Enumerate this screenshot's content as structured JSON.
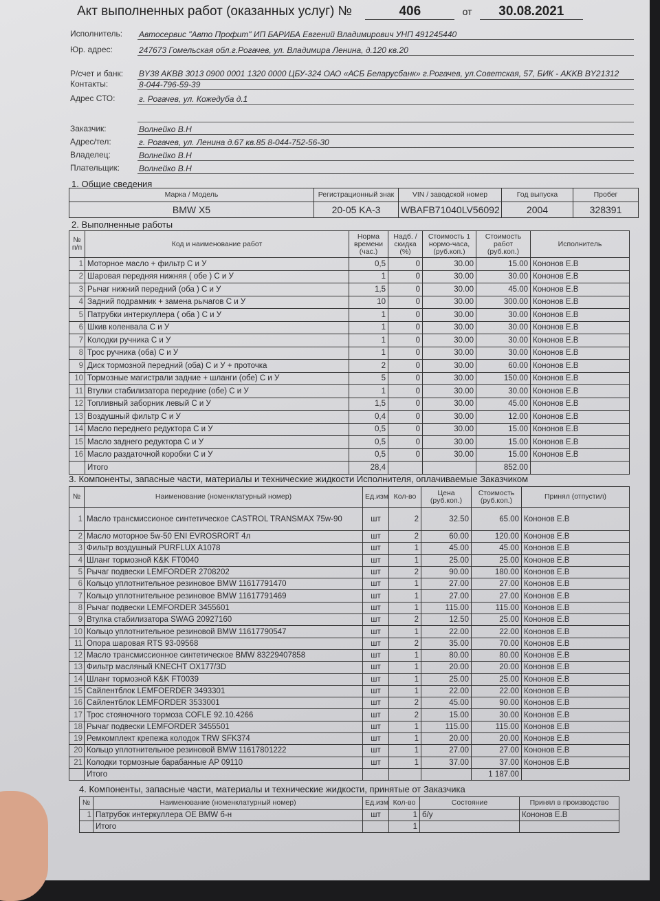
{
  "header": {
    "title": "Акт выполненных работ (оказанных услуг) №",
    "number": "406",
    "date_prefix": "от",
    "date": "30.08.2021"
  },
  "fields": [
    {
      "label": "Исполнитель:",
      "value": "Автосервис \"Авто Профит\" ИП БАРИБА Евгений Владимирович УНП 491245440"
    },
    {
      "label": "Юр. адрес:",
      "value": "247673 Гомельская обл.г.Рогачев, ул. Владимира Ленина, д.120 кв.20"
    },
    {
      "label": "Р/счет и банк:",
      "value": "BY38 AKBB 3013 0900 0001 1320 0000 ЦБУ-324 ОАО «АСБ Беларусбанк» г.Рогачев, ул.Советская, 57, БИК - AKKB BY21312"
    },
    {
      "label": "Контакты:",
      "value": "8-044-796-59-39"
    },
    {
      "label": "Адрес СТО:",
      "value": "г. Рогачев, ул. Кожедуба д.1"
    },
    {
      "label": "",
      "value": ""
    },
    {
      "label": "Заказчик:",
      "value": "Волнейко В.Н"
    },
    {
      "label": "Адрес/тел:",
      "value": "г. Рогачев, ул. Ленина д.67 кв.85  8-044-752-56-30"
    },
    {
      "label": "Владелец:",
      "value": "Волнейко В.Н"
    },
    {
      "label": "Плательщик:",
      "value": "Волнейко В.Н"
    }
  ],
  "section1": {
    "title": "1. Общие сведения",
    "headers": [
      "Марка / Модель",
      "Регистрационный знак",
      "VIN / заводской номер",
      "Год выпуска",
      "Пробег"
    ],
    "values": [
      "BMW X5",
      "20-05 KA-3",
      "WBAFB71040LV56092",
      "2004",
      "328391"
    ]
  },
  "section2": {
    "title": "2. Выполненные работы",
    "headers": [
      "№ п/п",
      "Код и наименование работ",
      "Норма времени (час.)",
      "Надб. / скидка (%)",
      "Стоимость 1 нормо-часа, (руб.коп.)",
      "Стоимость работ (руб.коп.)",
      "Исполнитель"
    ],
    "rows": [
      [
        "1",
        "Моторное масло + фильтр С и У",
        "0,5",
        "0",
        "30.00",
        "15.00",
        "Кононов Е.В"
      ],
      [
        "2",
        "Шаровая передняя нижняя ( обе ) С и У",
        "1",
        "0",
        "30.00",
        "30.00",
        "Кононов Е.В"
      ],
      [
        "3",
        "Рычаг нижний передний (оба ) С и У",
        "1,5",
        "0",
        "30.00",
        "45.00",
        "Кононов Е.В"
      ],
      [
        "4",
        "Задний подрамник + замена рычагов С и У",
        "10",
        "0",
        "30.00",
        "300.00",
        "Кононов Е.В"
      ],
      [
        "5",
        "Патрубки интеркуллера ( оба ) С и У",
        "1",
        "0",
        "30.00",
        "30.00",
        "Кононов Е.В"
      ],
      [
        "6",
        "Шкив коленвала С и У",
        "1",
        "0",
        "30.00",
        "30.00",
        "Кононов Е.В"
      ],
      [
        "7",
        "Колодки ручника С и У",
        "1",
        "0",
        "30.00",
        "30.00",
        "Кононов Е.В"
      ],
      [
        "8",
        "Трос ручника (оба) С и У",
        "1",
        "0",
        "30.00",
        "30.00",
        "Кононов Е.В"
      ],
      [
        "9",
        "Диск тормозной передний (оба) С и У + проточка",
        "2",
        "0",
        "30.00",
        "60.00",
        "Кононов Е.В"
      ],
      [
        "10",
        "Тормозные магистрали задние + шланги (обе)  С и У",
        "5",
        "0",
        "30.00",
        "150.00",
        "Кононов Е.В"
      ],
      [
        "11",
        "Втулки стабилизатора передние (обе) С и У",
        "1",
        "0",
        "30.00",
        "30.00",
        "Кононов Е.В"
      ],
      [
        "12",
        "Топливный заборник левый С и У",
        "1,5",
        "0",
        "30.00",
        "45.00",
        "Кононов Е.В"
      ],
      [
        "13",
        "Воздушный фильтр С и У",
        "0,4",
        "0",
        "30.00",
        "12.00",
        "Кононов Е.В"
      ],
      [
        "14",
        "Масло переднего редуктора С и У",
        "0,5",
        "0",
        "30.00",
        "15.00",
        "Кононов Е.В"
      ],
      [
        "15",
        "Масло заднего  редуктора С и У",
        "0,5",
        "0",
        "30.00",
        "15.00",
        "Кононов Е.В"
      ],
      [
        "16",
        "Масло раздаточной коробки С и У",
        "0,5",
        "0",
        "30.00",
        "15.00",
        "Кононов Е.В"
      ]
    ],
    "total": [
      "",
      "Итого",
      "28,4",
      "",
      "",
      "852.00",
      ""
    ]
  },
  "section3": {
    "title": "3. Компоненты, запасные части, материалы и технические жидкости Исполнителя, оплачиваемые Заказчиком",
    "headers": [
      "№",
      "Наименование (номенклатурный номер)",
      "Ед.изм",
      "Кол-во",
      "Цена (руб.коп.)",
      "Стоимость (руб.коп.)",
      "Принял (отпустил)"
    ],
    "rows": [
      [
        "1",
        "Масло трансмиссионое синтетическое CASTROL TRANSMAX 75w-90",
        "шт",
        "2",
        "32.50",
        "65.00",
        "Кононов Е.В"
      ],
      [
        "2",
        "Масло моторное 5w-50 ENI EVROSRORT  4л",
        "шт",
        "2",
        "60.00",
        "120.00",
        "Кононов Е.В"
      ],
      [
        "3",
        "Фильтр воздушный PURFLUX  A1078",
        "шт",
        "1",
        "45.00",
        "45.00",
        "Кононов Е.В"
      ],
      [
        "4",
        "Шланг тормозной K&K  FT0040",
        "шт",
        "1",
        "25.00",
        "25.00",
        "Кононов Е.В"
      ],
      [
        "5",
        "Рычаг подвески LEMFORDER  2708202",
        "шт",
        "2",
        "90.00",
        "180.00",
        "Кононов Е.В"
      ],
      [
        "6",
        "Кольцо уплотнительное резиновое BMW  11617791470",
        "шт",
        "1",
        "27.00",
        "27.00",
        "Кононов Е.В"
      ],
      [
        "7",
        "Кольцо уплотнительное резиновое BMW  11617791469",
        "шт",
        "1",
        "27.00",
        "27.00",
        "Кононов Е.В"
      ],
      [
        "8",
        "Рычаг подвески LEMFORDER  3455601",
        "шт",
        "1",
        "115.00",
        "115.00",
        "Кононов Е.В"
      ],
      [
        "9",
        "Втулка стабилизатора  SWAG  20927160",
        "шт",
        "2",
        "12.50",
        "25.00",
        "Кононов Е.В"
      ],
      [
        "10",
        "Кольцо уплотнительное резиновой BMW  11617790547",
        "шт",
        "1",
        "22.00",
        "22.00",
        "Кононов Е.В"
      ],
      [
        "11",
        "Опора шаровая RTS  93-09568",
        "шт",
        "2",
        "35.00",
        "70.00",
        "Кононов Е.В"
      ],
      [
        "12",
        "Масло трансмиссионное синтетическое BMW  83229407858",
        "шт",
        "1",
        "80.00",
        "80.00",
        "Кононов Е.В"
      ],
      [
        "13",
        "Фильтр масляный KNECHT  OX177/3D",
        "шт",
        "1",
        "20.00",
        "20.00",
        "Кононов Е.В"
      ],
      [
        "14",
        "Шланг тормозной K&K  FT0039",
        "шт",
        "1",
        "25.00",
        "25.00",
        "Кононов Е.В"
      ],
      [
        "15",
        "Сайлентблок LEMFOERDER  3493301",
        "шт",
        "1",
        "22.00",
        "22.00",
        "Кононов Е.В"
      ],
      [
        "16",
        "Сайлентблок LEMFORDER  3533001",
        "шт",
        "2",
        "45.00",
        "90.00",
        "Кононов Е.В"
      ],
      [
        "17",
        "Трос стояночного тормоза COFLE  92.10.4266",
        "шт",
        "2",
        "15.00",
        "30.00",
        "Кононов Е.В"
      ],
      [
        "18",
        "Рычаг подвески LEMFORDER  3455501",
        "шт",
        "1",
        "115.00",
        "115.00",
        "Кононов Е.В"
      ],
      [
        "19",
        "Ремкомплект крепежа колодок TRW  SFK374",
        "шт",
        "1",
        "20.00",
        "20.00",
        "Кононов Е.В"
      ],
      [
        "20",
        "Кольцо уплотнительное резиновой BMW  11617801222",
        "шт",
        "1",
        "27.00",
        "27.00",
        "Кононов Е.В"
      ],
      [
        "21",
        "Колодки тормозные барабанные AP  09110",
        "шт",
        "1",
        "37.00",
        "37.00",
        "Кононов Е.В"
      ]
    ],
    "total": [
      "",
      "Итого",
      "",
      "",
      "",
      "1 187.00",
      ""
    ]
  },
  "section4": {
    "title": "4. Компоненты, запасные части, материалы и технические жидкости, принятые от Заказчика",
    "headers": [
      "№",
      "Наименование (номенклатурный номер)",
      "Ед.изм",
      "Кол-во",
      "Состояние",
      "Принял в производство"
    ],
    "rows": [
      [
        "1",
        "Патрубок интеркуллера OE BMW  б-н",
        "шт",
        "1",
        "б/у",
        "Кононов Е.В"
      ]
    ],
    "total": [
      "",
      "Итого",
      "",
      "1",
      "",
      ""
    ]
  }
}
